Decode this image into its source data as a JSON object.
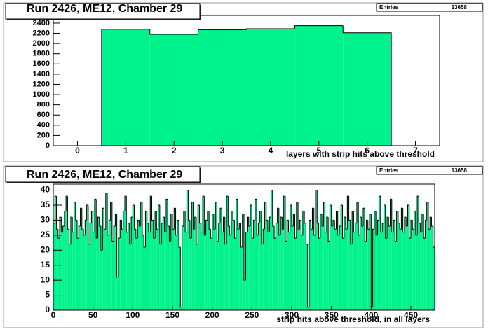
{
  "chart_data": [
    {
      "type": "histogram",
      "title": "Run 2426, ME12, Chamber 29",
      "entries_label": "Entries",
      "entries": 13658,
      "x_label": "layers with strip hits above threshold",
      "color": "#00f28c",
      "bins": [
        0.5,
        1.5,
        2.5,
        3.5,
        4.5,
        5.5,
        6.5
      ],
      "values": [
        2280,
        2180,
        2270,
        2290,
        2350,
        2210
      ],
      "xlim": [
        -0.5,
        7.5
      ],
      "xticks": [
        0,
        1,
        2,
        3,
        4,
        5,
        6,
        7
      ],
      "ylim": [
        0,
        2550
      ],
      "yticks": [
        0,
        200,
        400,
        600,
        800,
        1000,
        1200,
        1400,
        1600,
        1800,
        2000,
        2200,
        2400
      ]
    },
    {
      "type": "histogram",
      "title": "Run 2426, ME12, Chamber 29",
      "entries_label": "Entries",
      "entries": 13658,
      "x_label": "strip hits above threshold, in all layers",
      "color": "#00f28c",
      "bins": [
        0,
        2,
        4,
        6,
        8,
        10,
        12,
        14,
        16,
        18,
        20,
        22,
        24,
        26,
        28,
        30,
        32,
        34,
        36,
        38,
        40,
        42,
        44,
        46,
        48,
        50,
        52,
        54,
        56,
        58,
        60,
        62,
        64,
        66,
        68,
        70,
        72,
        74,
        76,
        78,
        80,
        82,
        84,
        86,
        88,
        90,
        92,
        94,
        96,
        98,
        100,
        102,
        104,
        106,
        108,
        110,
        112,
        114,
        116,
        118,
        120,
        122,
        124,
        126,
        128,
        130,
        132,
        134,
        136,
        138,
        140,
        142,
        144,
        146,
        148,
        150,
        152,
        154,
        156,
        158,
        160,
        162,
        164,
        166,
        168,
        170,
        172,
        174,
        176,
        178,
        180,
        182,
        184,
        186,
        188,
        190,
        192,
        194,
        196,
        198,
        200,
        202,
        204,
        206,
        208,
        210,
        212,
        214,
        216,
        218,
        220,
        222,
        224,
        226,
        228,
        230,
        232,
        234,
        236,
        238,
        240,
        242,
        244,
        246,
        248,
        250,
        252,
        254,
        256,
        258,
        260,
        262,
        264,
        266,
        268,
        270,
        272,
        274,
        276,
        278,
        280,
        282,
        284,
        286,
        288,
        290,
        292,
        294,
        296,
        298,
        300,
        302,
        304,
        306,
        308,
        310,
        312,
        314,
        316,
        318,
        320,
        322,
        324,
        326,
        328,
        330,
        332,
        334,
        336,
        338,
        340,
        342,
        344,
        346,
        348,
        350,
        352,
        354,
        356,
        358,
        360,
        362,
        364,
        366,
        368,
        370,
        372,
        374,
        376,
        378,
        380,
        382,
        384,
        386,
        388,
        390,
        392,
        394,
        396,
        398,
        400,
        402,
        404,
        406,
        408,
        410,
        412,
        414,
        416,
        418,
        420,
        422,
        424,
        426,
        428,
        430,
        432,
        434,
        436,
        438,
        440,
        442,
        444,
        446,
        448,
        450,
        452,
        454,
        456,
        458,
        460,
        462,
        464,
        466,
        468,
        470,
        472,
        474,
        476,
        478,
        480
      ],
      "values": [
        29,
        38,
        27,
        24,
        31,
        26,
        28,
        33,
        38,
        27,
        22,
        31,
        26,
        36,
        30,
        24,
        28,
        34,
        27,
        25,
        30,
        35,
        22,
        29,
        33,
        26,
        37,
        24,
        31,
        28,
        20,
        34,
        27,
        39,
        25,
        30,
        36,
        23,
        28,
        32,
        11,
        24,
        30,
        27,
        33,
        38,
        26,
        29,
        22,
        31,
        35,
        27,
        24,
        30,
        28,
        36,
        25,
        21,
        33,
        29,
        26,
        38,
        30,
        24,
        33,
        27,
        35,
        22,
        29,
        31,
        26,
        37,
        28,
        23,
        32,
        27,
        34,
        25,
        30,
        21,
        1,
        28,
        33,
        26,
        40,
        30,
        24,
        36,
        27,
        31,
        22,
        35,
        29,
        26,
        38,
        25,
        30,
        33,
        27,
        24,
        32,
        27,
        36,
        23,
        29,
        34,
        26,
        31,
        22,
        38,
        28,
        25,
        33,
        30,
        24,
        37,
        27,
        29,
        21,
        32,
        10,
        26,
        31,
        28,
        35,
        24,
        30,
        37,
        25,
        29,
        33,
        22,
        27,
        36,
        30,
        26,
        31,
        40,
        28,
        24,
        29,
        34,
        25,
        31,
        27,
        38,
        23,
        30,
        26,
        35,
        28,
        32,
        24,
        36,
        27,
        30,
        25,
        33,
        29,
        22,
        1,
        30,
        27,
        34,
        25,
        40,
        29,
        24,
        32,
        28,
        36,
        26,
        31,
        23,
        35,
        28,
        30,
        27,
        33,
        25,
        28,
        35,
        24,
        31,
        27,
        38,
        30,
        22,
        33,
        26,
        29,
        36,
        25,
        31,
        28,
        34,
        23,
        30,
        27,
        32,
        1,
        27,
        33,
        25,
        30,
        38,
        26,
        29,
        35,
        24,
        31,
        28,
        37,
        26,
        30,
        23,
        33,
        29,
        27,
        34,
        26,
        31,
        28,
        35,
        24,
        30,
        27,
        33,
        25,
        38,
        29,
        26,
        32,
        24,
        30,
        36,
        27,
        31,
        28,
        21
      ],
      "xlim": [
        0,
        480
      ],
      "xticks": [
        0,
        50,
        100,
        150,
        200,
        250,
        300,
        350,
        400,
        450
      ],
      "ylim": [
        0,
        42
      ],
      "yticks": [
        0,
        5,
        10,
        15,
        20,
        25,
        30,
        35,
        40
      ]
    }
  ]
}
